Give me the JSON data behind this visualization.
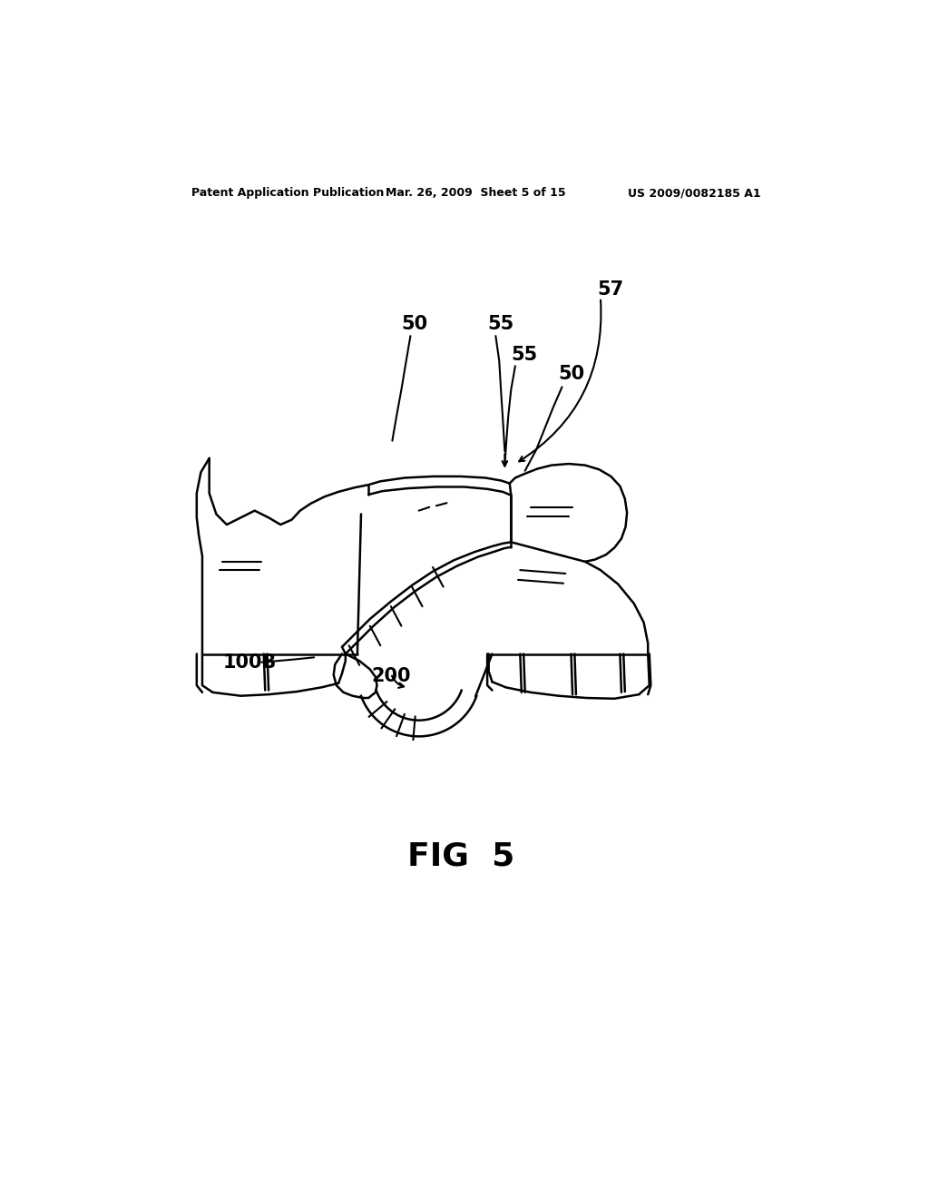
{
  "bg_color": "#ffffff",
  "line_color": "#000000",
  "header_left": "Patent Application Publication",
  "header_center": "Mar. 26, 2009  Sheet 5 of 15",
  "header_right": "US 2009/0082185 A1",
  "fig_label": "FIG  5"
}
